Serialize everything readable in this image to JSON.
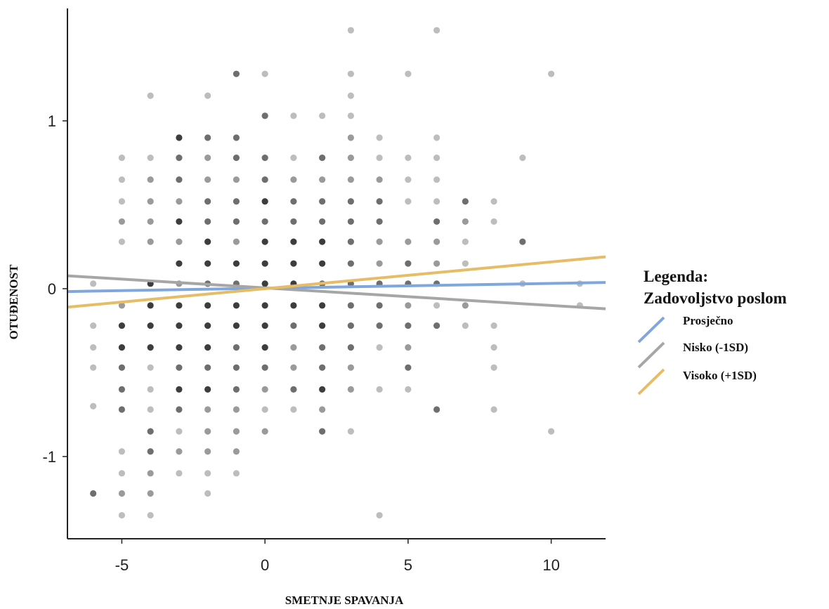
{
  "chart_data": {
    "type": "scatter",
    "xlabel": "SMETNJE SPAVANJA",
    "ylabel": "OTUĐENOST",
    "xlim": [
      -6.9,
      11.9
    ],
    "ylim": [
      -1.49,
      1.67
    ],
    "xticks": [
      -5,
      0,
      5,
      10
    ],
    "yticks": [
      -1,
      0,
      1
    ],
    "grid": false,
    "legend": {
      "title_line1": "Legenda:",
      "title_line2": "Zadovoljstvo poslom",
      "placement": "right"
    },
    "series": [
      {
        "name": "Prosječno",
        "color": "#7fa7dd",
        "x": [
          -6.9,
          11.9
        ],
        "y": [
          -0.017,
          0.037
        ]
      },
      {
        "name": "Nisko (-1SD)",
        "color": "#a6a6a6",
        "x": [
          -6.9,
          11.9
        ],
        "y": [
          0.077,
          -0.12
        ]
      },
      {
        "name": "Visoko (+1SD)",
        "color": "#e6bd66",
        "x": [
          -6.9,
          11.9
        ],
        "y": [
          -0.11,
          0.19
        ]
      }
    ],
    "points": [
      [
        -6,
        -1.22,
        3
      ],
      [
        -6,
        -0.7,
        1
      ],
      [
        -6,
        -0.47,
        1
      ],
      [
        -6,
        -0.35,
        1
      ],
      [
        -6,
        -0.22,
        1
      ],
      [
        -6,
        0.03,
        1
      ],
      [
        -5,
        0.78,
        1
      ],
      [
        -5,
        0.65,
        1
      ],
      [
        -5,
        0.52,
        1
      ],
      [
        -5,
        0.4,
        2
      ],
      [
        -5,
        0.28,
        1
      ],
      [
        -5,
        -0.1,
        2
      ],
      [
        -5,
        -0.22,
        4
      ],
      [
        -5,
        -0.35,
        4
      ],
      [
        -5,
        -0.47,
        3
      ],
      [
        -5,
        -0.6,
        3
      ],
      [
        -5,
        -0.72,
        3
      ],
      [
        -5,
        -0.97,
        1
      ],
      [
        -5,
        -1.1,
        1
      ],
      [
        -5,
        -1.22,
        2
      ],
      [
        -5,
        -1.35,
        1
      ],
      [
        -4,
        1.15,
        1
      ],
      [
        -4,
        0.78,
        1
      ],
      [
        -4,
        0.65,
        2
      ],
      [
        -4,
        0.52,
        2
      ],
      [
        -4,
        0.4,
        2
      ],
      [
        -4,
        0.28,
        2
      ],
      [
        -4,
        0.03,
        4
      ],
      [
        -4,
        -0.1,
        4
      ],
      [
        -4,
        -0.22,
        4
      ],
      [
        -4,
        -0.35,
        4
      ],
      [
        -4,
        -0.47,
        1
      ],
      [
        -4,
        -0.6,
        1
      ],
      [
        -4,
        -0.72,
        1
      ],
      [
        -4,
        -0.85,
        3
      ],
      [
        -4,
        -0.97,
        3
      ],
      [
        -4,
        -1.1,
        2
      ],
      [
        -4,
        -1.22,
        2
      ],
      [
        -4,
        -1.35,
        1
      ],
      [
        -3,
        0.9,
        4
      ],
      [
        -3,
        0.78,
        3
      ],
      [
        -3,
        0.65,
        3
      ],
      [
        -3,
        0.52,
        2
      ],
      [
        -3,
        0.4,
        4
      ],
      [
        -3,
        0.28,
        2
      ],
      [
        -3,
        0.15,
        4
      ],
      [
        -3,
        0.03,
        2
      ],
      [
        -3,
        -0.1,
        4
      ],
      [
        -3,
        -0.22,
        4
      ],
      [
        -3,
        -0.35,
        4
      ],
      [
        -3,
        -0.47,
        3
      ],
      [
        -3,
        -0.6,
        4
      ],
      [
        -3,
        -0.72,
        3
      ],
      [
        -3,
        -0.85,
        1
      ],
      [
        -3,
        -0.97,
        2
      ],
      [
        -3,
        -1.1,
        1
      ],
      [
        -2,
        1.15,
        1
      ],
      [
        -2,
        0.9,
        3
      ],
      [
        -2,
        0.78,
        2
      ],
      [
        -2,
        0.65,
        2
      ],
      [
        -2,
        0.52,
        3
      ],
      [
        -2,
        0.4,
        3
      ],
      [
        -2,
        0.28,
        4
      ],
      [
        -2,
        0.15,
        4
      ],
      [
        -2,
        0.03,
        3
      ],
      [
        -2,
        -0.1,
        4
      ],
      [
        -2,
        -0.22,
        4
      ],
      [
        -2,
        -0.35,
        4
      ],
      [
        -2,
        -0.47,
        3
      ],
      [
        -2,
        -0.6,
        4
      ],
      [
        -2,
        -0.72,
        2
      ],
      [
        -2,
        -0.85,
        2
      ],
      [
        -2,
        -0.97,
        2
      ],
      [
        -2,
        -1.1,
        1
      ],
      [
        -2,
        -1.22,
        1
      ],
      [
        -1,
        1.28,
        3
      ],
      [
        -1,
        0.9,
        3
      ],
      [
        -1,
        0.78,
        3
      ],
      [
        -1,
        0.65,
        2
      ],
      [
        -1,
        0.52,
        3
      ],
      [
        -1,
        0.4,
        3
      ],
      [
        -1,
        0.28,
        2
      ],
      [
        -1,
        0.15,
        4
      ],
      [
        -1,
        0.03,
        3
      ],
      [
        -1,
        -0.1,
        4
      ],
      [
        -1,
        -0.22,
        4
      ],
      [
        -1,
        -0.35,
        3
      ],
      [
        -1,
        -0.47,
        3
      ],
      [
        -1,
        -0.6,
        3
      ],
      [
        -1,
        -0.72,
        2
      ],
      [
        -1,
        -0.85,
        2
      ],
      [
        -1,
        -0.97,
        2
      ],
      [
        -1,
        -1.1,
        1
      ],
      [
        0,
        1.28,
        1
      ],
      [
        0,
        1.03,
        3
      ],
      [
        0,
        0.78,
        3
      ],
      [
        0,
        0.65,
        3
      ],
      [
        0,
        0.52,
        4
      ],
      [
        0,
        0.4,
        3
      ],
      [
        0,
        0.28,
        4
      ],
      [
        0,
        0.15,
        4
      ],
      [
        0,
        0.03,
        4
      ],
      [
        0,
        -0.1,
        4
      ],
      [
        0,
        -0.22,
        4
      ],
      [
        0,
        -0.35,
        4
      ],
      [
        0,
        -0.47,
        3
      ],
      [
        0,
        -0.6,
        2
      ],
      [
        0,
        -0.72,
        1
      ],
      [
        0,
        -0.85,
        2
      ],
      [
        1,
        1.03,
        1
      ],
      [
        1,
        0.78,
        1
      ],
      [
        1,
        0.65,
        2
      ],
      [
        1,
        0.52,
        3
      ],
      [
        1,
        0.4,
        3
      ],
      [
        1,
        0.28,
        4
      ],
      [
        1,
        0.15,
        4
      ],
      [
        1,
        0.03,
        4
      ],
      [
        1,
        -0.1,
        4
      ],
      [
        1,
        -0.22,
        3
      ],
      [
        1,
        -0.35,
        2
      ],
      [
        1,
        -0.47,
        2
      ],
      [
        1,
        -0.6,
        3
      ],
      [
        1,
        -0.72,
        1
      ],
      [
        2,
        1.03,
        1
      ],
      [
        2,
        0.78,
        3
      ],
      [
        2,
        0.65,
        2
      ],
      [
        2,
        0.52,
        3
      ],
      [
        2,
        0.4,
        3
      ],
      [
        2,
        0.28,
        4
      ],
      [
        2,
        0.15,
        4
      ],
      [
        2,
        0.03,
        3
      ],
      [
        2,
        -0.1,
        4
      ],
      [
        2,
        -0.22,
        4
      ],
      [
        2,
        -0.35,
        3
      ],
      [
        2,
        -0.47,
        3
      ],
      [
        2,
        -0.6,
        4
      ],
      [
        2,
        -0.72,
        2
      ],
      [
        2,
        -0.85,
        3
      ],
      [
        3,
        1.54,
        1
      ],
      [
        3,
        1.28,
        1
      ],
      [
        3,
        1.15,
        1
      ],
      [
        3,
        1.03,
        1
      ],
      [
        3,
        0.9,
        2
      ],
      [
        3,
        0.78,
        2
      ],
      [
        3,
        0.65,
        2
      ],
      [
        3,
        0.52,
        3
      ],
      [
        3,
        0.4,
        3
      ],
      [
        3,
        0.28,
        3
      ],
      [
        3,
        0.15,
        3
      ],
      [
        3,
        0.03,
        3
      ],
      [
        3,
        -0.1,
        3
      ],
      [
        3,
        -0.22,
        3
      ],
      [
        3,
        -0.35,
        3
      ],
      [
        3,
        -0.47,
        2
      ],
      [
        3,
        -0.6,
        2
      ],
      [
        3,
        -0.85,
        1
      ],
      [
        4,
        0.9,
        1
      ],
      [
        4,
        0.78,
        1
      ],
      [
        4,
        0.65,
        2
      ],
      [
        4,
        0.52,
        3
      ],
      [
        4,
        0.4,
        3
      ],
      [
        4,
        0.28,
        2
      ],
      [
        4,
        0.15,
        2
      ],
      [
        4,
        0.03,
        3
      ],
      [
        4,
        -0.1,
        3
      ],
      [
        4,
        -0.22,
        3
      ],
      [
        4,
        -0.35,
        1
      ],
      [
        4,
        -0.6,
        1
      ],
      [
        4,
        -1.35,
        1
      ],
      [
        5,
        1.28,
        1
      ],
      [
        5,
        0.78,
        1
      ],
      [
        5,
        0.65,
        1
      ],
      [
        5,
        0.52,
        1
      ],
      [
        5,
        0.28,
        2
      ],
      [
        5,
        0.15,
        3
      ],
      [
        5,
        0.03,
        3
      ],
      [
        5,
        -0.1,
        2
      ],
      [
        5,
        -0.22,
        3
      ],
      [
        5,
        -0.35,
        2
      ],
      [
        5,
        -0.47,
        3
      ],
      [
        5,
        -0.6,
        1
      ],
      [
        6,
        1.54,
        1
      ],
      [
        6,
        0.9,
        1
      ],
      [
        6,
        0.78,
        1
      ],
      [
        6,
        0.65,
        1
      ],
      [
        6,
        0.52,
        1
      ],
      [
        6,
        0.4,
        3
      ],
      [
        6,
        0.28,
        2
      ],
      [
        6,
        0.15,
        2
      ],
      [
        6,
        0.03,
        3
      ],
      [
        6,
        -0.1,
        1
      ],
      [
        6,
        -0.22,
        3
      ],
      [
        6,
        -0.72,
        3
      ],
      [
        7,
        0.52,
        3
      ],
      [
        7,
        0.4,
        2
      ],
      [
        7,
        0.28,
        1
      ],
      [
        7,
        0.15,
        1
      ],
      [
        7,
        -0.1,
        2
      ],
      [
        7,
        -0.22,
        1
      ],
      [
        8,
        0.52,
        1
      ],
      [
        8,
        0.4,
        1
      ],
      [
        8,
        -0.22,
        1
      ],
      [
        8,
        -0.35,
        1
      ],
      [
        8,
        -0.47,
        1
      ],
      [
        8,
        -0.72,
        1
      ],
      [
        9,
        0.78,
        1
      ],
      [
        9,
        0.28,
        3
      ],
      [
        9,
        0.03,
        1
      ],
      [
        10,
        1.28,
        1
      ],
      [
        10,
        -0.85,
        1
      ],
      [
        11,
        0.03,
        1
      ],
      [
        11,
        -0.1,
        1
      ]
    ]
  }
}
